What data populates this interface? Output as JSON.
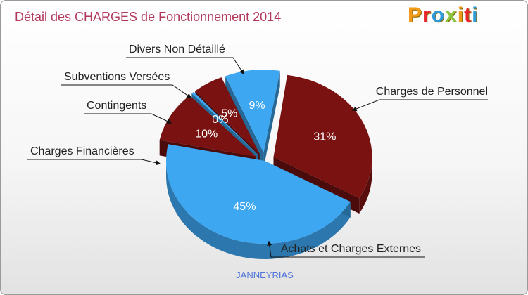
{
  "title": "Détail des CHARGES de Fonctionnement 2014",
  "logo": {
    "text": "Proxiti",
    "colors": [
      "#f29a1a",
      "#e8262b",
      "#2f9bd8",
      "#8bc53f",
      "#f29a1a",
      "#e8262b",
      "#2f9bd8"
    ]
  },
  "subtitle": "JANNEYRIAS",
  "colors": {
    "blue": "#3da7f2",
    "dark_red": "#7a1212",
    "title": "#b2385c"
  },
  "chart_data": {
    "type": "pie",
    "title": "Détail des CHARGES de Fonctionnement 2014",
    "subtitle": "JANNEYRIAS",
    "slices": [
      {
        "label": "Charges de Personnel",
        "value": 31,
        "pct_label": "31%",
        "color": "#7a1212"
      },
      {
        "label": "Achats et Charges Externes",
        "value": 45,
        "pct_label": "45%",
        "color": "#3da7f2"
      },
      {
        "label": "Charges Financières",
        "value": 10,
        "pct_label": "10%",
        "color": "#7a1212"
      },
      {
        "label": "Contingents",
        "value": 0,
        "pct_label": "0%",
        "color": "#3da7f2"
      },
      {
        "label": "Subventions Versées",
        "value": 5,
        "pct_label": "5%",
        "color": "#7a1212"
      },
      {
        "label": "Divers Non Détaillé",
        "value": 9,
        "pct_label": "9%",
        "color": "#3da7f2"
      }
    ]
  }
}
